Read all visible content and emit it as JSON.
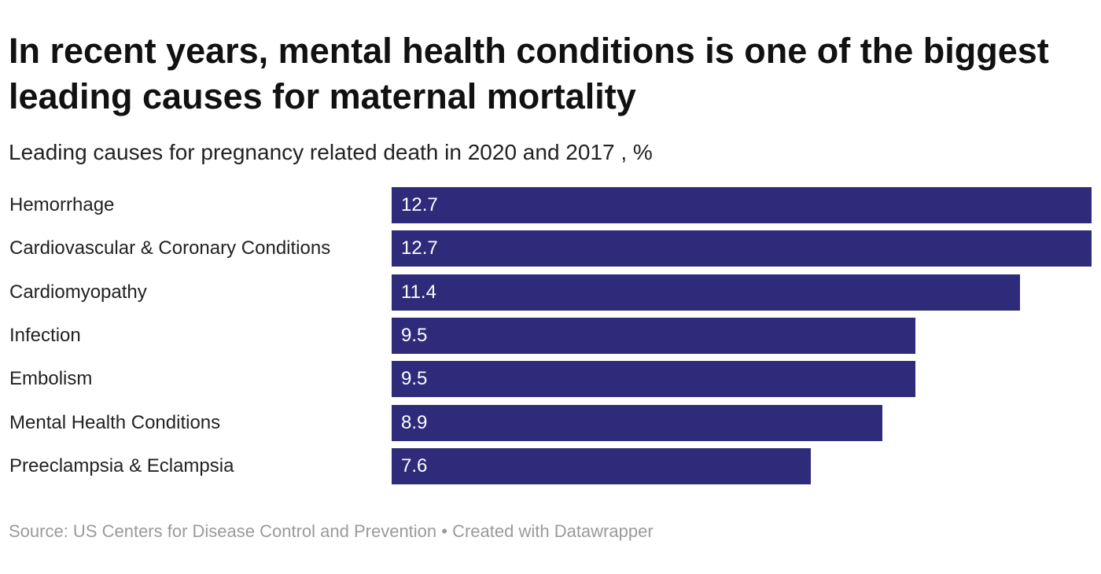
{
  "chart_data": {
    "type": "bar",
    "orientation": "horizontal",
    "title": "In recent years, mental health conditions is one of the biggest leading causes for maternal mortality",
    "subtitle": "Leading causes for pregnancy related death in 2020 and 2017 , %",
    "categories": [
      "Hemorrhage",
      "Cardiovascular & Coronary Conditions",
      "Cardiomyopathy",
      "Infection",
      "Embolism",
      "Mental Health Conditions",
      "Preeclampsia & Eclampsia"
    ],
    "values": [
      12.7,
      12.7,
      11.4,
      9.5,
      9.5,
      8.9,
      7.6
    ],
    "value_labels": [
      "12.7",
      "12.7",
      "11.4",
      "9.5",
      "9.5",
      "8.9",
      "7.6"
    ],
    "xlim": [
      0,
      12.7
    ],
    "grid": false,
    "legend": "none",
    "bar_color": "#2e2c7a",
    "value_label_color": "#ffffff"
  },
  "footer": {
    "source": "Source: US Centers for Disease Control and Prevention • Created with Datawrapper"
  }
}
